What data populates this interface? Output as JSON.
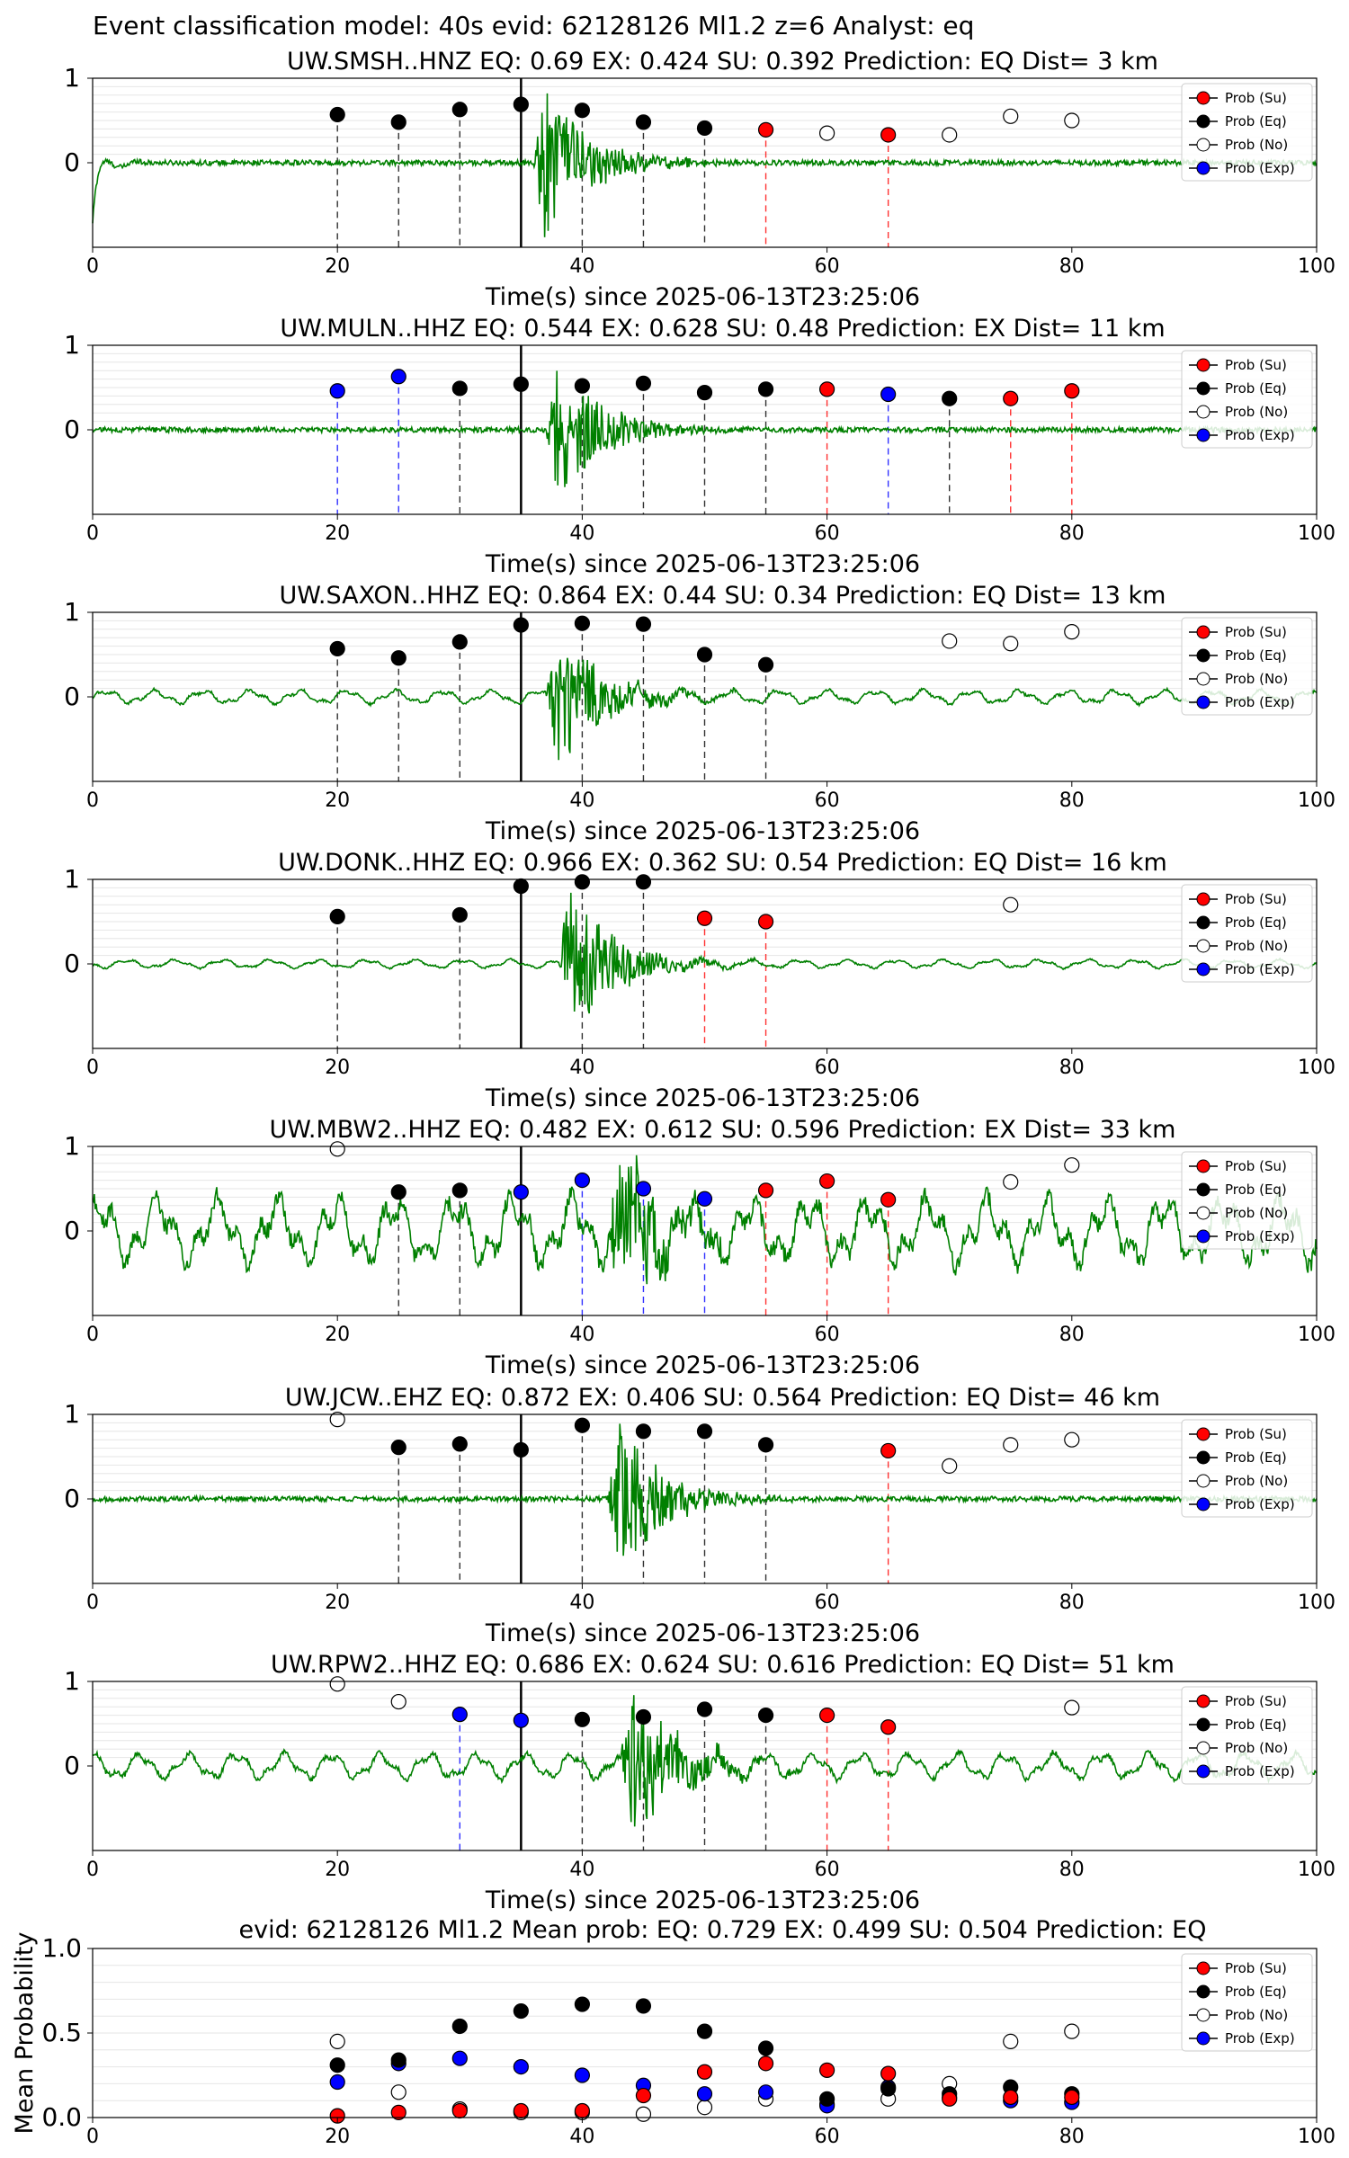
{
  "figure": {
    "suptitle": "Event classification model: 40s evid: 62128126 Ml1.2 z=6 Analyst: eq"
  },
  "legend": {
    "entries": [
      {
        "label": "Prob (Su)",
        "color": "#ff0000",
        "fill": true
      },
      {
        "label": "Prob (Eq)",
        "color": "#000000",
        "fill": true
      },
      {
        "label": "Prob (No)",
        "color": "#ffffff",
        "fill": false
      },
      {
        "label": "Prob (Exp)",
        "color": "#0000ff",
        "fill": true
      }
    ],
    "placement": "right"
  },
  "colors": {
    "waveform": "#008000",
    "su": "#ff0000",
    "eq": "#000000",
    "no": "#ffffff",
    "exp": "#0000ff",
    "onset_line": "#000000"
  },
  "chart_data": [
    {
      "type": "scatter",
      "title": "UW.SMSH..HNZ   EQ: 0.69  EX: 0.424  SU: 0.392   Prediction: EQ    Dist= 3 km",
      "xlabel": "Time(s) since 2025-06-13T23:25:06",
      "xlim": [
        0,
        100
      ],
      "ylim": [
        -1,
        1
      ],
      "xticks": [
        "0",
        "20",
        "40",
        "60",
        "80",
        "100"
      ],
      "yticks": [
        "1",
        "0"
      ],
      "onset_time": 35,
      "waveform": {
        "amplitude": 0.03,
        "burst_start": 36,
        "burst_amp": 0.95,
        "noise": "low",
        "initial_transient": true
      },
      "points": [
        {
          "t": 20,
          "p": 0.57,
          "cls": "eq"
        },
        {
          "t": 25,
          "p": 0.48,
          "cls": "eq"
        },
        {
          "t": 30,
          "p": 0.63,
          "cls": "eq"
        },
        {
          "t": 35,
          "p": 0.69,
          "cls": "eq"
        },
        {
          "t": 40,
          "p": 0.62,
          "cls": "eq"
        },
        {
          "t": 45,
          "p": 0.48,
          "cls": "eq"
        },
        {
          "t": 50,
          "p": 0.41,
          "cls": "eq"
        },
        {
          "t": 55,
          "p": 0.39,
          "cls": "su"
        },
        {
          "t": 60,
          "p": 0.35,
          "cls": "no"
        },
        {
          "t": 65,
          "p": 0.33,
          "cls": "su"
        },
        {
          "t": 70,
          "p": 0.33,
          "cls": "no"
        },
        {
          "t": 75,
          "p": 0.55,
          "cls": "no"
        },
        {
          "t": 80,
          "p": 0.5,
          "cls": "no"
        }
      ]
    },
    {
      "type": "scatter",
      "title": "UW.MULN..HHZ   EQ: 0.544  EX: 0.628  SU: 0.48   Prediction: EX    Dist= 11 km",
      "xlabel": "Time(s) since 2025-06-13T23:25:06",
      "xlim": [
        0,
        100
      ],
      "ylim": [
        -1,
        1
      ],
      "xticks": [
        "0",
        "20",
        "40",
        "60",
        "80",
        "100"
      ],
      "yticks": [
        "1",
        "0"
      ],
      "onset_time": 35,
      "waveform": {
        "amplitude": 0.03,
        "burst_start": 37,
        "burst_amp": 0.85,
        "noise": "low"
      },
      "points": [
        {
          "t": 20,
          "p": 0.46,
          "cls": "exp"
        },
        {
          "t": 25,
          "p": 0.63,
          "cls": "exp"
        },
        {
          "t": 30,
          "p": 0.49,
          "cls": "eq"
        },
        {
          "t": 35,
          "p": 0.54,
          "cls": "eq"
        },
        {
          "t": 40,
          "p": 0.52,
          "cls": "eq"
        },
        {
          "t": 45,
          "p": 0.55,
          "cls": "eq"
        },
        {
          "t": 50,
          "p": 0.44,
          "cls": "eq"
        },
        {
          "t": 55,
          "p": 0.48,
          "cls": "eq"
        },
        {
          "t": 60,
          "p": 0.48,
          "cls": "su"
        },
        {
          "t": 65,
          "p": 0.42,
          "cls": "exp"
        },
        {
          "t": 70,
          "p": 0.37,
          "cls": "eq"
        },
        {
          "t": 75,
          "p": 0.37,
          "cls": "su"
        },
        {
          "t": 80,
          "p": 0.46,
          "cls": "su"
        }
      ]
    },
    {
      "type": "scatter",
      "title": "UW.SAXON..HHZ   EQ: 0.864  EX: 0.44  SU: 0.34   Prediction: EQ    Dist= 13 km",
      "xlabel": "Time(s) since 2025-06-13T23:25:06",
      "xlim": [
        0,
        100
      ],
      "ylim": [
        -1,
        1
      ],
      "xticks": [
        "0",
        "20",
        "40",
        "60",
        "80",
        "100"
      ],
      "yticks": [
        "1",
        "0"
      ],
      "onset_time": 35,
      "waveform": {
        "amplitude": 0.08,
        "burst_start": 37,
        "burst_amp": 0.85,
        "noise": "wavy"
      },
      "points": [
        {
          "t": 20,
          "p": 0.57,
          "cls": "eq"
        },
        {
          "t": 25,
          "p": 0.46,
          "cls": "eq"
        },
        {
          "t": 30,
          "p": 0.65,
          "cls": "eq"
        },
        {
          "t": 35,
          "p": 0.85,
          "cls": "eq"
        },
        {
          "t": 40,
          "p": 0.87,
          "cls": "eq"
        },
        {
          "t": 45,
          "p": 0.86,
          "cls": "eq"
        },
        {
          "t": 50,
          "p": 0.5,
          "cls": "eq"
        },
        {
          "t": 55,
          "p": 0.38,
          "cls": "eq"
        },
        {
          "t": 70,
          "p": 0.66,
          "cls": "no"
        },
        {
          "t": 75,
          "p": 0.63,
          "cls": "no"
        },
        {
          "t": 80,
          "p": 0.77,
          "cls": "no"
        }
      ]
    },
    {
      "type": "scatter",
      "title": "UW.DONK..HHZ   EQ: 0.966  EX: 0.362  SU: 0.54   Prediction: EQ    Dist= 16 km",
      "xlabel": "Time(s) since 2025-06-13T23:25:06",
      "xlim": [
        0,
        100
      ],
      "ylim": [
        -1,
        1
      ],
      "xticks": [
        "0",
        "20",
        "40",
        "60",
        "80",
        "100"
      ],
      "yticks": [
        "1",
        "0"
      ],
      "onset_time": 35,
      "waveform": {
        "amplitude": 0.05,
        "burst_start": 38,
        "burst_amp": 0.9,
        "noise": "wavy"
      },
      "points": [
        {
          "t": 20,
          "p": 0.56,
          "cls": "eq"
        },
        {
          "t": 30,
          "p": 0.58,
          "cls": "eq"
        },
        {
          "t": 35,
          "p": 0.92,
          "cls": "eq"
        },
        {
          "t": 40,
          "p": 0.97,
          "cls": "eq"
        },
        {
          "t": 45,
          "p": 0.97,
          "cls": "eq"
        },
        {
          "t": 50,
          "p": 0.54,
          "cls": "su"
        },
        {
          "t": 55,
          "p": 0.5,
          "cls": "su"
        },
        {
          "t": 75,
          "p": 0.7,
          "cls": "no"
        }
      ]
    },
    {
      "type": "scatter",
      "title": "UW.MBW2..HHZ   EQ: 0.482  EX: 0.612  SU: 0.596   Prediction: EX    Dist= 33 km",
      "xlabel": "Time(s) since 2025-06-13T23:25:06",
      "xlim": [
        0,
        100
      ],
      "ylim": [
        -1,
        1
      ],
      "xticks": [
        "0",
        "20",
        "40",
        "60",
        "80",
        "100"
      ],
      "yticks": [
        "1",
        "0"
      ],
      "onset_time": 35,
      "waveform": {
        "amplitude": 0.4,
        "burst_start": 42,
        "burst_amp": 0.95,
        "noise": "strong"
      },
      "points": [
        {
          "t": 20,
          "p": 0.97,
          "cls": "no"
        },
        {
          "t": 25,
          "p": 0.46,
          "cls": "eq"
        },
        {
          "t": 30,
          "p": 0.48,
          "cls": "eq"
        },
        {
          "t": 35,
          "p": 0.46,
          "cls": "exp"
        },
        {
          "t": 40,
          "p": 0.6,
          "cls": "exp"
        },
        {
          "t": 45,
          "p": 0.5,
          "cls": "exp"
        },
        {
          "t": 50,
          "p": 0.38,
          "cls": "exp"
        },
        {
          "t": 55,
          "p": 0.48,
          "cls": "su"
        },
        {
          "t": 60,
          "p": 0.59,
          "cls": "su"
        },
        {
          "t": 65,
          "p": 0.37,
          "cls": "su"
        },
        {
          "t": 75,
          "p": 0.58,
          "cls": "no"
        },
        {
          "t": 80,
          "p": 0.78,
          "cls": "no"
        }
      ]
    },
    {
      "type": "scatter",
      "title": "UW.JCW..EHZ   EQ: 0.872  EX: 0.406  SU: 0.564   Prediction: EQ    Dist= 46 km",
      "xlabel": "Time(s) since 2025-06-13T23:25:06",
      "xlim": [
        0,
        100
      ],
      "ylim": [
        -1,
        1
      ],
      "xticks": [
        "0",
        "20",
        "40",
        "60",
        "80",
        "100"
      ],
      "yticks": [
        "1",
        "0"
      ],
      "onset_time": 35,
      "waveform": {
        "amplitude": 0.03,
        "burst_start": 42,
        "burst_amp": 0.95,
        "noise": "low"
      },
      "points": [
        {
          "t": 20,
          "p": 0.94,
          "cls": "no"
        },
        {
          "t": 25,
          "p": 0.61,
          "cls": "eq"
        },
        {
          "t": 30,
          "p": 0.65,
          "cls": "eq"
        },
        {
          "t": 35,
          "p": 0.58,
          "cls": "eq"
        },
        {
          "t": 40,
          "p": 0.87,
          "cls": "eq"
        },
        {
          "t": 45,
          "p": 0.8,
          "cls": "eq"
        },
        {
          "t": 50,
          "p": 0.8,
          "cls": "eq"
        },
        {
          "t": 55,
          "p": 0.64,
          "cls": "eq"
        },
        {
          "t": 65,
          "p": 0.57,
          "cls": "su"
        },
        {
          "t": 70,
          "p": 0.39,
          "cls": "no"
        },
        {
          "t": 75,
          "p": 0.64,
          "cls": "no"
        },
        {
          "t": 80,
          "p": 0.7,
          "cls": "no"
        }
      ]
    },
    {
      "type": "scatter",
      "title": "UW.RPW2..HHZ   EQ: 0.686  EX: 0.624  SU: 0.616   Prediction: EQ    Dist= 51 km",
      "xlabel": "Time(s) since 2025-06-13T23:25:06",
      "xlim": [
        0,
        100
      ],
      "ylim": [
        -1,
        1
      ],
      "xticks": [
        "0",
        "20",
        "40",
        "60",
        "80",
        "100"
      ],
      "yticks": [
        "1",
        "0"
      ],
      "onset_time": 35,
      "waveform": {
        "amplitude": 0.15,
        "burst_start": 43,
        "burst_amp": 0.95,
        "noise": "wavy"
      },
      "points": [
        {
          "t": 20,
          "p": 0.97,
          "cls": "no"
        },
        {
          "t": 25,
          "p": 0.76,
          "cls": "no"
        },
        {
          "t": 30,
          "p": 0.61,
          "cls": "exp"
        },
        {
          "t": 35,
          "p": 0.54,
          "cls": "exp"
        },
        {
          "t": 40,
          "p": 0.55,
          "cls": "eq"
        },
        {
          "t": 45,
          "p": 0.58,
          "cls": "eq"
        },
        {
          "t": 50,
          "p": 0.67,
          "cls": "eq"
        },
        {
          "t": 55,
          "p": 0.6,
          "cls": "eq"
        },
        {
          "t": 60,
          "p": 0.6,
          "cls": "su"
        },
        {
          "t": 65,
          "p": 0.46,
          "cls": "su"
        },
        {
          "t": 80,
          "p": 0.69,
          "cls": "no"
        }
      ]
    },
    {
      "type": "scatter",
      "title": "evid: 62128126  Ml1.2   Mean prob:   EQ: 0.729  EX: 0.499  SU: 0.504   Prediction: EQ",
      "xlabel": "",
      "ylabel": "Mean Probability",
      "xlim": [
        0,
        100
      ],
      "ylim": [
        0,
        1
      ],
      "xticks": [
        "0",
        "20",
        "40",
        "60",
        "80",
        "100"
      ],
      "yticks": [
        "1.0",
        "0.5",
        "0.0"
      ],
      "x": [
        20,
        25,
        30,
        35,
        40,
        45,
        50,
        55,
        60,
        65,
        70,
        75,
        80
      ],
      "series": [
        {
          "cls": "no",
          "values": [
            0.45,
            0.15,
            0.05,
            0.03,
            0.03,
            0.02,
            0.06,
            0.11,
            0.08,
            0.11,
            0.2,
            0.45,
            0.51
          ]
        },
        {
          "cls": "exp",
          "values": [
            0.21,
            0.32,
            0.35,
            0.3,
            0.25,
            0.19,
            0.14,
            0.15,
            0.07,
            0.18,
            0.12,
            0.1,
            0.09
          ]
        },
        {
          "cls": "eq",
          "values": [
            0.31,
            0.34,
            0.54,
            0.63,
            0.67,
            0.66,
            0.51,
            0.41,
            0.11,
            0.17,
            0.14,
            0.18,
            0.14
          ]
        },
        {
          "cls": "su",
          "values": [
            0.01,
            0.03,
            0.04,
            0.04,
            0.04,
            0.13,
            0.27,
            0.32,
            0.28,
            0.26,
            0.11,
            0.12,
            0.12
          ]
        }
      ]
    }
  ]
}
